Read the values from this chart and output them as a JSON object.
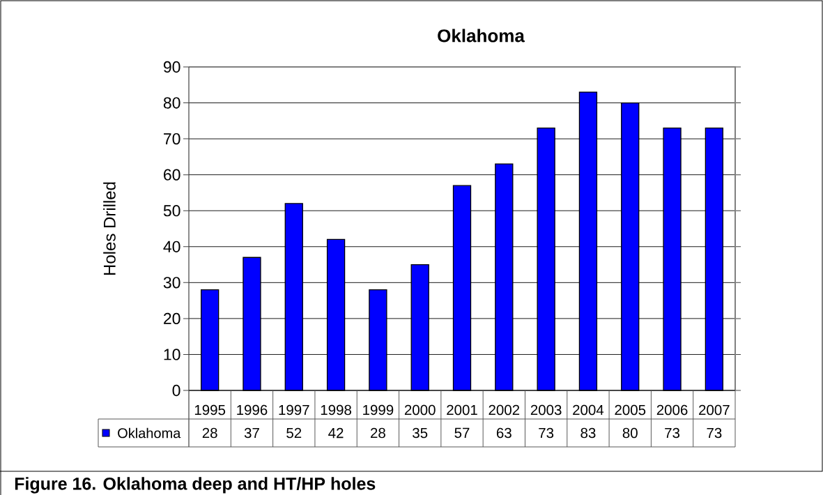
{
  "chart_data": {
    "type": "bar",
    "title": "Oklahoma",
    "ylabel": "Holes Drilled",
    "categories": [
      "1995",
      "1996",
      "1997",
      "1998",
      "1999",
      "2000",
      "2001",
      "2002",
      "2003",
      "2004",
      "2005",
      "2006",
      "2007"
    ],
    "series": [
      {
        "name": "Oklahoma",
        "color": "#0000ff",
        "values": [
          28,
          37,
          52,
          42,
          28,
          35,
          57,
          63,
          73,
          83,
          80,
          73,
          73
        ]
      }
    ],
    "ylim": [
      0,
      90
    ],
    "yticks": [
      0,
      10,
      20,
      30,
      40,
      50,
      60,
      70,
      80,
      90
    ],
    "grid": "y",
    "legend": "bottom left",
    "data_labels": true,
    "annotations": [
      "Figure 16. Oklahoma deep and HT/HP holes"
    ]
  }
}
